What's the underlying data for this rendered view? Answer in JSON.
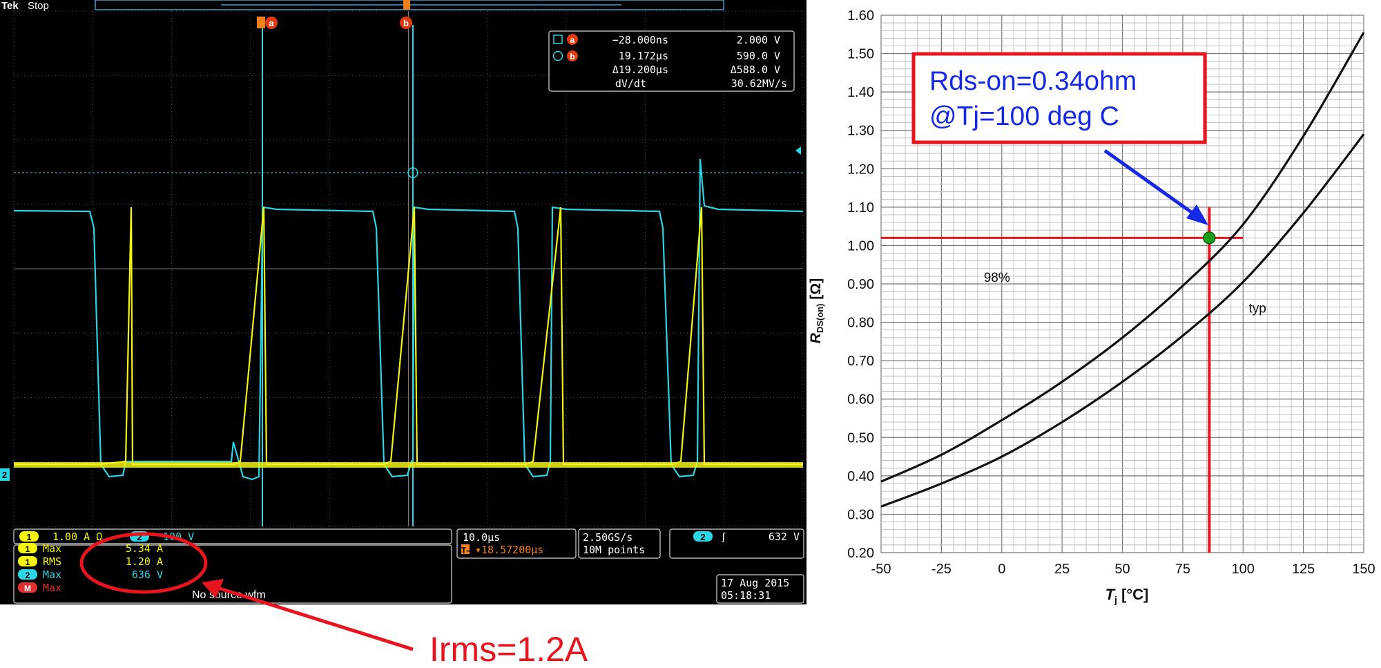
{
  "scope": {
    "brand": "Tek",
    "status": "Stop",
    "cursor_a_label": "a",
    "cursor_b_label": "b",
    "readout": {
      "a_time": "−28.000ns",
      "a_value": "2.000 V",
      "b_time": "19.172µs",
      "b_value": "590.0 V",
      "delta_time": "Δ19.200µs",
      "delta_value": "Δ588.0 V",
      "rate_label": "dV/dt",
      "rate_value": "30.62MV/s"
    },
    "channel_marker": "2",
    "ch1_badge": "1",
    "ch1_scale": "1.00 A Ω",
    "ch2_badge": "2",
    "ch2_scale": "100 V",
    "measurements": [
      {
        "badge": "1",
        "name": "Max",
        "value": "5.34 A"
      },
      {
        "badge": "1",
        "name": "RMS",
        "value": "1.20 A"
      },
      {
        "badge": "2",
        "name": "Max",
        "value": "636 V"
      },
      {
        "badge": "M",
        "name": "Max",
        "value": "",
        "note": "No source wfm"
      }
    ],
    "timebase": "10.0µs",
    "trigger_pos": "▾18.57200µs",
    "trigger_pos_prefix": "T→",
    "sample_rate": "2.50GS/s",
    "record_length": "10M points",
    "trigger_badge": "2",
    "trigger_slope": "ʃ",
    "trigger_level": "632 V",
    "date": "17 Aug 2015",
    "time": "05:18:31",
    "colors": {
      "ch1": "#f5f50a",
      "ch2": "#29d6e6",
      "math": "#e03030",
      "orange": "#f0801e"
    }
  },
  "annotations": {
    "irms": "Irms=1.2A",
    "rds_line1": "Rds-on=0.34ohm",
    "rds_line2": "@Tj=100 deg C",
    "color_red": "#e8141e",
    "color_blue": "#1428e6"
  },
  "chart_data": {
    "type": "line",
    "title": "",
    "xlabel_main": "T",
    "xlabel_sub": "j",
    "xlabel_unit": " [°C]",
    "ylabel_main": "R",
    "ylabel_sub": "DS(on)",
    "ylabel_unit": " [Ω]",
    "xlim": [
      -50,
      150
    ],
    "ylim": [
      0.2,
      1.6
    ],
    "x_ticks": [
      -50,
      -25,
      0,
      25,
      50,
      75,
      100,
      125,
      150
    ],
    "x_tick_labels": [
      "-50",
      "-25",
      "0",
      "25",
      "50",
      "75",
      "100",
      "125",
      "150"
    ],
    "y_ticks": [
      0.2,
      0.3,
      0.4,
      0.5,
      0.6,
      0.7,
      0.8,
      0.9,
      1.0,
      1.1,
      1.2,
      1.3,
      1.4,
      1.5,
      1.6
    ],
    "y_tick_labels": [
      "0.20",
      "0.30",
      "0.40",
      "0.50",
      "0.60",
      "0.70",
      "0.80",
      "0.90",
      "1.00",
      "1.10",
      "1.20",
      "1.30",
      "1.40",
      "1.50",
      "1.60"
    ],
    "grid": true,
    "series": [
      {
        "name": "98%",
        "x": [
          -50,
          -25,
          0,
          25,
          50,
          75,
          100,
          125,
          150
        ],
        "values": [
          0.385,
          0.455,
          0.545,
          0.645,
          0.76,
          0.895,
          1.055,
          1.285,
          1.555
        ]
      },
      {
        "name": "typ",
        "x": [
          -50,
          -25,
          0,
          25,
          50,
          75,
          100,
          125,
          150
        ],
        "values": [
          0.32,
          0.38,
          0.45,
          0.54,
          0.645,
          0.765,
          0.905,
          1.085,
          1.29
        ]
      }
    ],
    "series_label_positions": [
      {
        "x": -2,
        "y": 0.905
      },
      {
        "x": 106,
        "y": 0.825
      }
    ],
    "marker": {
      "x": 86,
      "y": 1.02
    },
    "crosshair": {
      "h_y": 1.02,
      "h_x_from": -50,
      "h_x_to": 100,
      "v_x": 86,
      "v_y_from": 0.2,
      "v_y_to": 1.1
    }
  }
}
